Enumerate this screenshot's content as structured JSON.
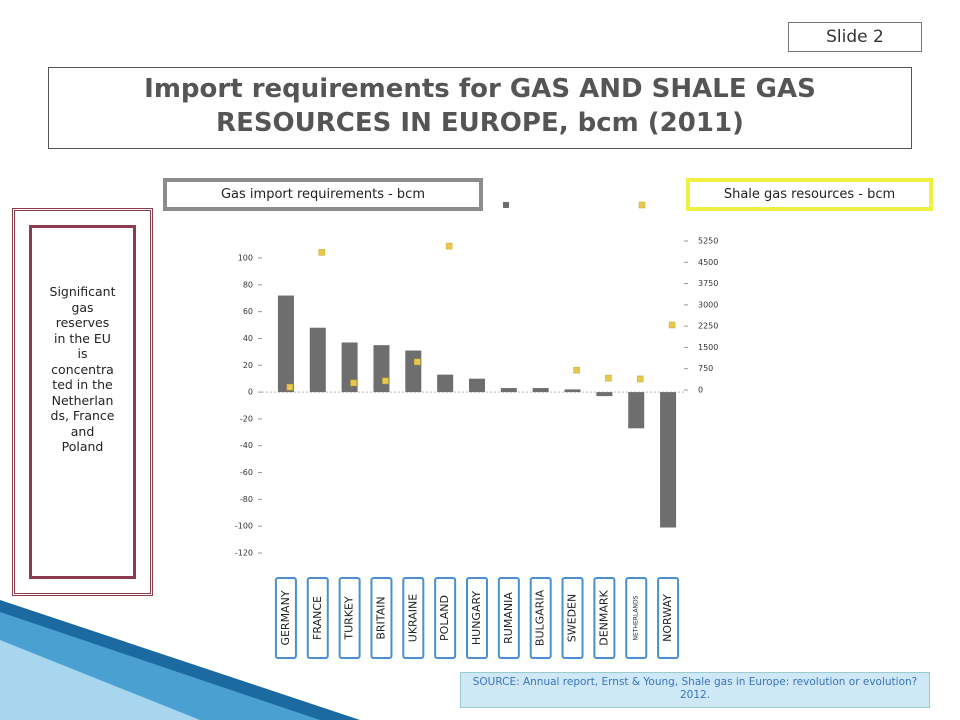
{
  "slide_label": "Slide 2",
  "title": "Import requirements for GAS AND SHALE GAS RESOURCES IN EUROPE, bcm (2011)",
  "sidebar_lines": [
    "Significant",
    "gas",
    "reserves",
    "in the EU",
    "is",
    "concentra",
    "ted in the",
    "Netherlan",
    "ds, France",
    "and",
    "Poland"
  ],
  "source": "SOURCE: Annual report, Ernst & Young, Shale gas in Europe: revolution or evolution? 2012.",
  "chart_data": {
    "type": "bar",
    "categories": [
      "GERMANY",
      "FRANCE",
      "TURKEY",
      "BRITAIN",
      "UKRAINE",
      "POLAND",
      "HUNGARY",
      "RUMANIA",
      "BULGARIA",
      "SWEDEN",
      "DENMARK",
      "NETHERLANDS",
      "NORWAY"
    ],
    "series": [
      {
        "name": "Gas import requirements - bcm",
        "color": "#6e6e6e",
        "values": [
          72,
          48,
          37,
          35,
          31,
          13,
          10,
          3,
          3,
          2,
          -3,
          -27,
          -101
        ]
      },
      {
        "name": "Shale gas resources - bcm",
        "color": "#e8c84c",
        "axis": "y2",
        "marker": "square",
        "values": [
          100,
          4850,
          250,
          320,
          990,
          5070,
          null,
          null,
          null,
          700,
          420,
          390,
          2290
        ]
      }
    ],
    "ylim": [
      -120,
      100
    ],
    "yticks": [
      100,
      80,
      60,
      40,
      20,
      0,
      -20,
      -40,
      -60,
      -80,
      -100,
      -120
    ],
    "y2lim": [
      0,
      5250
    ],
    "y2ticks": [
      5250,
      4500,
      3750,
      3000,
      2250,
      1500,
      750,
      0
    ]
  }
}
